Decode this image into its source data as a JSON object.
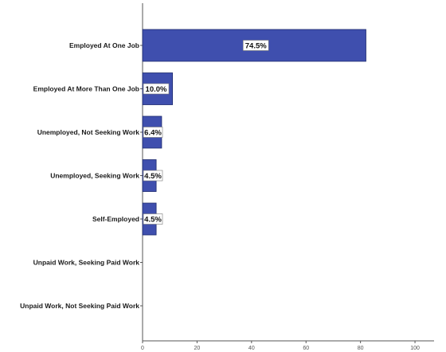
{
  "chart_data": {
    "type": "bar",
    "orientation": "horizontal",
    "categories": [
      "Employed At One Job",
      "Employed At More Than One Job",
      "Unemployed, Not Seeking Work",
      "Unemployed, Seeking Work",
      "Self-Employed",
      "Unpaid Work, Seeking Paid Work",
      "Unpaid Work, Not Seeking Paid Work"
    ],
    "values": [
      82,
      11,
      7,
      5,
      5,
      0,
      0
    ],
    "data_labels": [
      "74.5%",
      "10.0%",
      "6.4%",
      "4.5%",
      "4.5%",
      "",
      ""
    ],
    "xlim": [
      0,
      107
    ],
    "xticks": [
      0,
      20,
      40,
      60,
      80,
      100
    ],
    "xtick_labels": [
      "0",
      "20",
      "40",
      "60",
      "80",
      "100"
    ],
    "title": "",
    "xlabel": "",
    "ylabel": "",
    "grid": false,
    "colors": {
      "bar_fill": "#3f4fae",
      "bar_stroke": "#1d2a6e",
      "axis": "#555555",
      "label_box_fill": "#ffffff",
      "label_box_stroke": "#777777"
    }
  }
}
